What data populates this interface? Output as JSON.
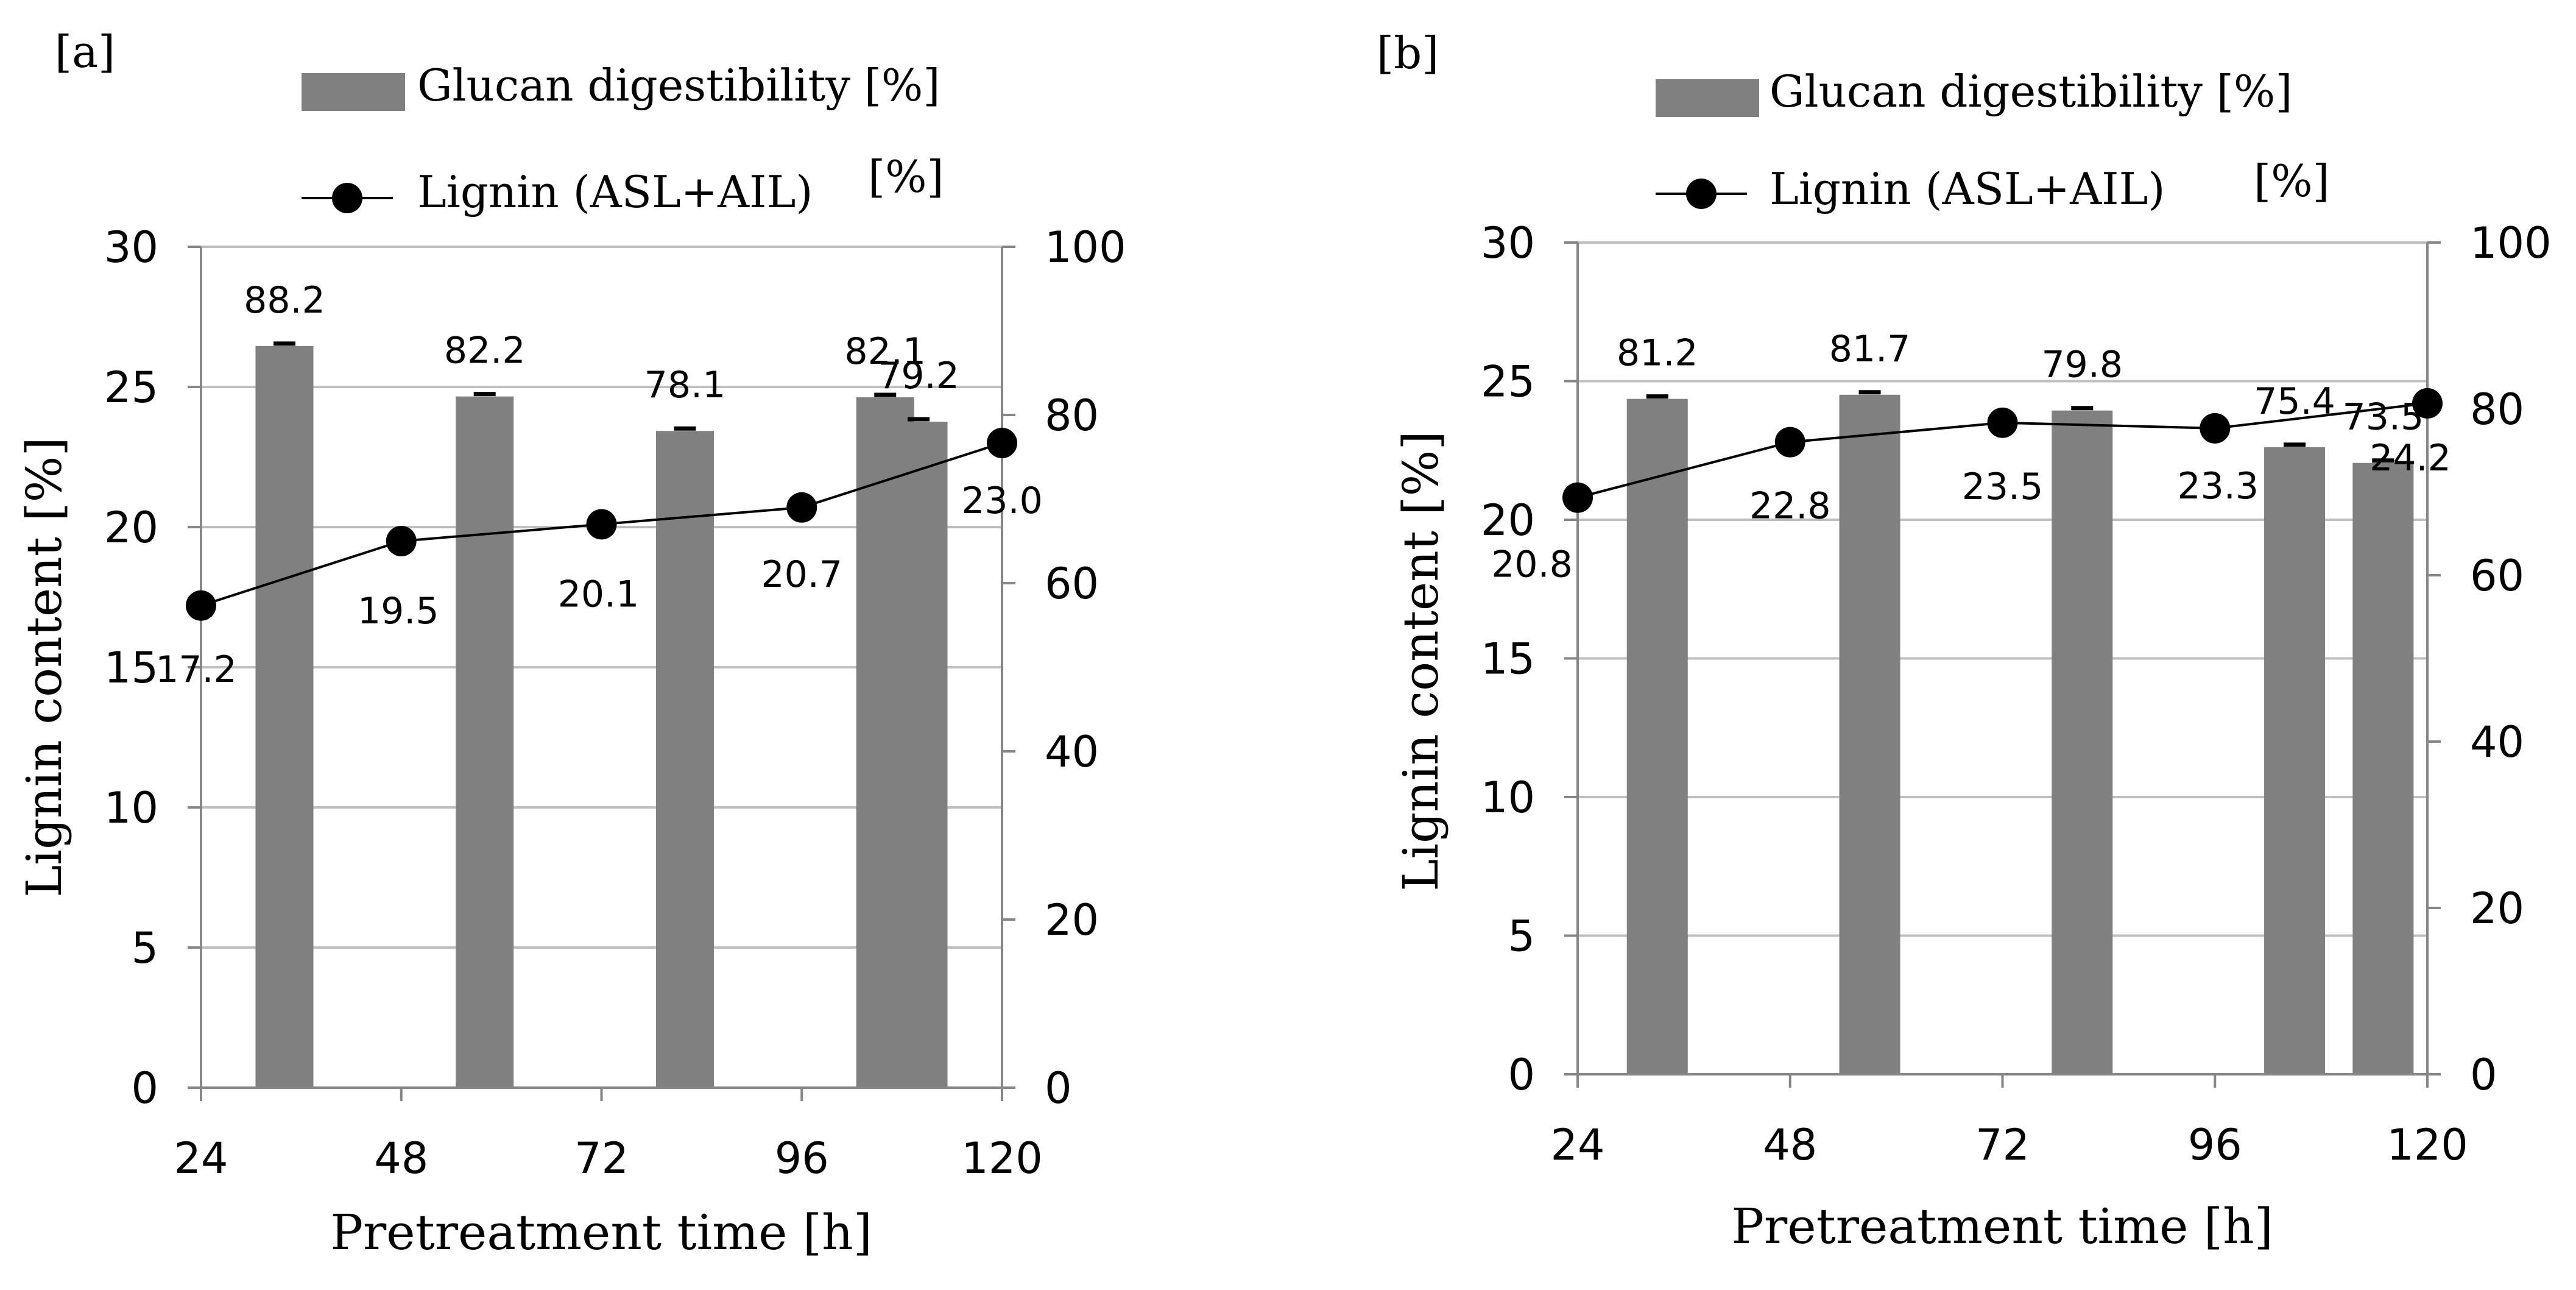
{
  "chart_data": [
    {
      "type": "bar+line",
      "panel_label": "[a]",
      "legend": [
        "Glucan digestibility [%]",
        "Lignin (ASL+AIL)"
      ],
      "right_unit_label": "[%]",
      "xlabel": "Pretreatment time [h]",
      "ylabel": "Lignin content [%]",
      "x_ticks": [
        "24",
        "48",
        "72",
        "96",
        "120"
      ],
      "y_left_ticks": [
        "0",
        "5",
        "10",
        "15",
        "20",
        "25",
        "30"
      ],
      "y_right_ticks": [
        "0",
        "20",
        "40",
        "60",
        "80",
        "100"
      ],
      "ylim_left": [
        0,
        30
      ],
      "ylim_right": [
        0,
        100
      ],
      "bars": {
        "name": "Glucan digestibility [%]",
        "axis": "right",
        "x": [
          34,
          58,
          82,
          106,
          110
        ],
        "values": [
          88.2,
          82.2,
          78.1,
          82.1,
          79.2
        ],
        "labels": [
          "88.2",
          "82.2",
          "78.1",
          "82.1",
          "79.2"
        ],
        "color": "#808080"
      },
      "line": {
        "name": "Lignin (ASL+AIL)",
        "axis": "left",
        "x": [
          24,
          48,
          72,
          96,
          120
        ],
        "values": [
          17.2,
          19.5,
          20.1,
          20.7,
          23.0
        ],
        "labels": [
          "17.2",
          "19.5",
          "20.1",
          "20.7",
          "23.0"
        ],
        "color": "#000000"
      }
    },
    {
      "type": "bar+line",
      "panel_label": "[b]",
      "legend": [
        "Glucan digestibility [%]",
        "Lignin (ASL+AIL)"
      ],
      "right_unit_label": "[%]",
      "xlabel": "Pretreatment time [h]",
      "ylabel": "Lignin content [%]",
      "x_ticks": [
        "24",
        "48",
        "72",
        "96",
        "120"
      ],
      "y_left_ticks": [
        "0",
        "5",
        "10",
        "15",
        "20",
        "25",
        "30"
      ],
      "y_right_ticks": [
        "0",
        "20",
        "40",
        "60",
        "80",
        "100"
      ],
      "ylim_left": [
        0,
        30
      ],
      "ylim_right": [
        0,
        100
      ],
      "bars": {
        "name": "Glucan digestibility [%]",
        "axis": "right",
        "x": [
          33,
          57,
          81,
          105,
          115
        ],
        "values": [
          81.2,
          81.7,
          79.8,
          75.4,
          73.5
        ],
        "labels": [
          "81.2",
          "81.7",
          "79.8",
          "75.4",
          "73.5"
        ],
        "color": "#808080"
      },
      "line": {
        "name": "Lignin (ASL+AIL)",
        "axis": "left",
        "x": [
          24,
          48,
          72,
          96,
          120
        ],
        "values": [
          20.8,
          22.8,
          23.5,
          23.3,
          24.2
        ],
        "labels": [
          "20.8",
          "22.8",
          "23.5",
          "23.3",
          "24.2"
        ],
        "color": "#000000"
      }
    }
  ]
}
